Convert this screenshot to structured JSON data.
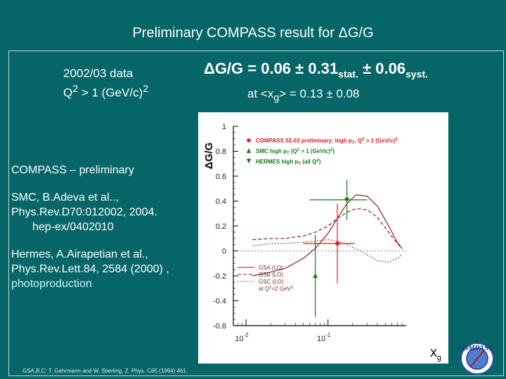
{
  "title": "Preliminary COMPASS result for ΔG/G",
  "data_info": {
    "line1": "2002/03 data",
    "line2_main": "Q",
    "line2_sup": "2",
    "line2_rest": " > 1 (GeV/c)",
    "line2_sup2": "2"
  },
  "result": {
    "main": "ΔG/G =  0.06 ± 0.31",
    "stat": "stat.",
    "pm": " ± 0.06",
    "syst": "syst."
  },
  "result2": {
    "pre": "at <x",
    "sub": "g",
    "post": "> = 0.13 ± 0.08"
  },
  "refs": {
    "compass": "COMPASS – preliminary",
    "smc1": "SMC, B.Adeva et al..,",
    "smc2": "Phys.Rev.D70:012002, 2004.",
    "smc3": "hep-ex/0402010",
    "hermes1": "Hermes, A.Airapetian et al.,",
    "hermes2": "Phys.Rev.Lett.84, 2584 (2000) ,",
    "hermes3": "photoproduction"
  },
  "footer": "GSA,B,C: T. Gehrmann and W. Stierling, Z. Phys. C65 (1994) 461.",
  "logo_text": "COMPASS",
  "colors": {
    "background": "#066566",
    "compass": "#e8161b",
    "smc": "#137a1c",
    "hermes": "#137a1c",
    "gsa": "#8a1c1c"
  },
  "chart_data": {
    "type": "scatter",
    "ylabel": "ΔG/G",
    "xlabel": "x",
    "xlabel_sub": "g",
    "xscale": "log",
    "xlim": [
      0.007,
      0.9
    ],
    "ylim": [
      -0.6,
      1.0
    ],
    "yticks": [
      "1",
      "0.8",
      "0.6",
      "0.4",
      "0.2",
      "0",
      "-0.2",
      "-0.4",
      "-0.6"
    ],
    "xticks": [
      {
        "base": "10",
        "exp": "-2"
      },
      {
        "base": "10",
        "exp": "-1"
      }
    ],
    "legend_top": [
      {
        "label": "COMPASS 02-03 preliminary: high p",
        "sub": "T",
        "rest": ", Q",
        "sup": "2",
        "rest2": " > 1 (GeV/c)",
        "sup2": "2",
        "marker": "circle",
        "color": "#e8161b"
      },
      {
        "label": "SMC high p",
        "sub": "T",
        "rest": " (Q",
        "sup": "2",
        "rest2": " > 1 (GeV/c)",
        "sup2": "2",
        "rest3": ")",
        "marker": "triangle-up",
        "color": "#137a1c"
      },
      {
        "label": "HERMES high p",
        "sub": "T",
        "rest": " (all Q",
        "sup": "2",
        "rest2": ")",
        "marker": "triangle-down",
        "color": "#137a1c"
      }
    ],
    "legend_bottom": [
      {
        "label": "GSA (LO)",
        "style": "solid"
      },
      {
        "label": "GSB (LO)",
        "style": "dashed"
      },
      {
        "label": "GSC (LO)",
        "style": "dotted"
      },
      {
        "label": "at Q² = 2 GeV²",
        "pre": "at Q",
        "sup": "2",
        "post": "=2 GeV",
        "sup2": "2",
        "style": "none"
      }
    ],
    "points": [
      {
        "series": "COMPASS",
        "x": 0.13,
        "y": 0.06,
        "xerr": [
          0.05,
          0.21
        ],
        "yerr": 0.32,
        "color": "#e8161b",
        "marker": "circle"
      },
      {
        "series": "SMC",
        "x": 0.07,
        "y": -0.2,
        "yerr": 0.33,
        "color": "#137a1c",
        "marker": "triangle-up"
      },
      {
        "series": "HERMES",
        "x": 0.17,
        "y": 0.41,
        "xerr": [
          0.06,
          0.3
        ],
        "yerr": 0.16,
        "color": "#137a1c",
        "marker": "triangle-down"
      }
    ],
    "curves": [
      {
        "name": "GSA (LO)",
        "style": "solid",
        "x": [
          0.012,
          0.02,
          0.03,
          0.05,
          0.07,
          0.1,
          0.13,
          0.17,
          0.22,
          0.3,
          0.4,
          0.55,
          0.7,
          0.8
        ],
        "y": [
          -0.2,
          -0.17,
          -0.14,
          -0.06,
          0.02,
          0.14,
          0.26,
          0.38,
          0.45,
          0.44,
          0.36,
          0.2,
          0.07,
          0.02
        ]
      },
      {
        "name": "GSB (LO)",
        "style": "dashed",
        "x": [
          0.012,
          0.02,
          0.03,
          0.05,
          0.07,
          0.1,
          0.13,
          0.17,
          0.22,
          0.3,
          0.4,
          0.55,
          0.7,
          0.8
        ],
        "y": [
          0.09,
          0.1,
          0.1,
          0.12,
          0.15,
          0.2,
          0.26,
          0.31,
          0.34,
          0.33,
          0.27,
          0.15,
          0.06,
          0.02
        ]
      },
      {
        "name": "GSC (LO)",
        "style": "dotted",
        "x": [
          0.012,
          0.02,
          0.03,
          0.05,
          0.07,
          0.1,
          0.13,
          0.17,
          0.22,
          0.3,
          0.4,
          0.55,
          0.7,
          0.8
        ],
        "y": [
          0.04,
          0.06,
          0.06,
          0.07,
          0.08,
          0.09,
          0.08,
          0.05,
          0.02,
          -0.03,
          -0.08,
          -0.09,
          -0.06,
          -0.03
        ]
      }
    ]
  }
}
